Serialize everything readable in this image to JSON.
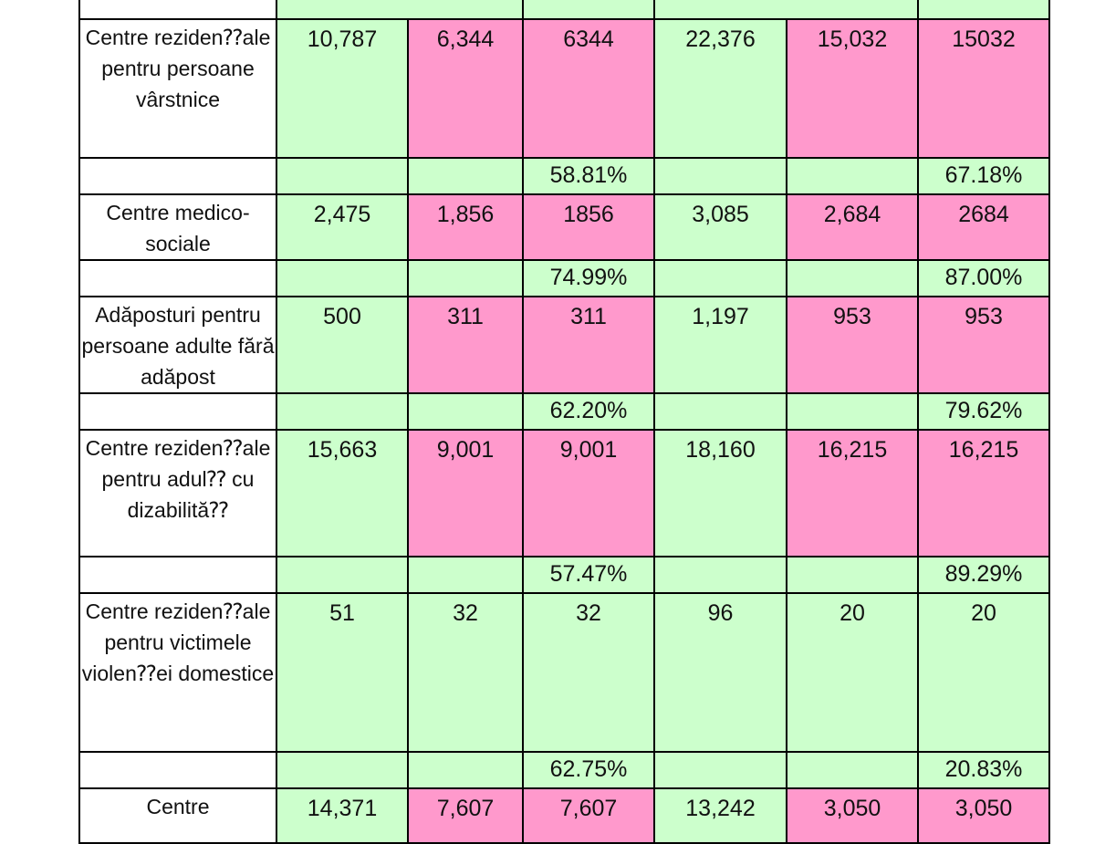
{
  "colors": {
    "green": "#ccffcc",
    "pink": "#ff99cc",
    "white": "#ffffff"
  },
  "rows": [
    {
      "label": "Centre reziden⁇ale pentru persoane vârstnice",
      "fill": [
        "g",
        "p",
        "p",
        "g",
        "p",
        "p"
      ],
      "values": [
        "10,787",
        "6,344",
        "6344",
        "22,376",
        "15,032",
        "15032"
      ],
      "pct": [
        "",
        "",
        "58.81%",
        "",
        "",
        "67.18%"
      ]
    },
    {
      "label": "Centre medico-sociale",
      "fill": [
        "g",
        "p",
        "p",
        "g",
        "p",
        "p"
      ],
      "values": [
        "2,475",
        "1,856",
        "1856",
        "3,085",
        "2,684",
        "2684"
      ],
      "pct": [
        "",
        "",
        "74.99%",
        "",
        "",
        "87.00%"
      ]
    },
    {
      "label": "Adăposturi pentru persoane adulte fără adăpost",
      "fill": [
        "g",
        "p",
        "p",
        "g",
        "p",
        "p"
      ],
      "values": [
        "500",
        "311",
        "311",
        "1,197",
        "953",
        "953"
      ],
      "pct": [
        "",
        "",
        "62.20%",
        "",
        "",
        "79.62%"
      ]
    },
    {
      "label": "Centre reziden⁇ale pentru adul⁇ cu dizabilită⁇",
      "fill": [
        "g",
        "p",
        "p",
        "g",
        "p",
        "p"
      ],
      "values": [
        "15,663",
        "9,001",
        "9,001",
        "18,160",
        "16,215",
        "16,215"
      ],
      "pct": [
        "",
        "",
        "57.47%",
        "",
        "",
        "89.29%"
      ]
    },
    {
      "label": "Centre reziden⁇ale pentru victimele violen⁇ei domestice",
      "fill": [
        "g",
        "g",
        "g",
        "g",
        "g",
        "g"
      ],
      "values": [
        "51",
        "32",
        "32",
        "96",
        "20",
        "20"
      ],
      "pct": [
        "",
        "",
        "62.75%",
        "",
        "",
        "20.83%"
      ]
    },
    {
      "label": "Centre",
      "fill": [
        "g",
        "p",
        "p",
        "g",
        "p",
        "p"
      ],
      "values": [
        "14,371",
        "7,607",
        "7,607",
        "13,242",
        "3,050",
        "3,050"
      ],
      "pct": null
    }
  ]
}
